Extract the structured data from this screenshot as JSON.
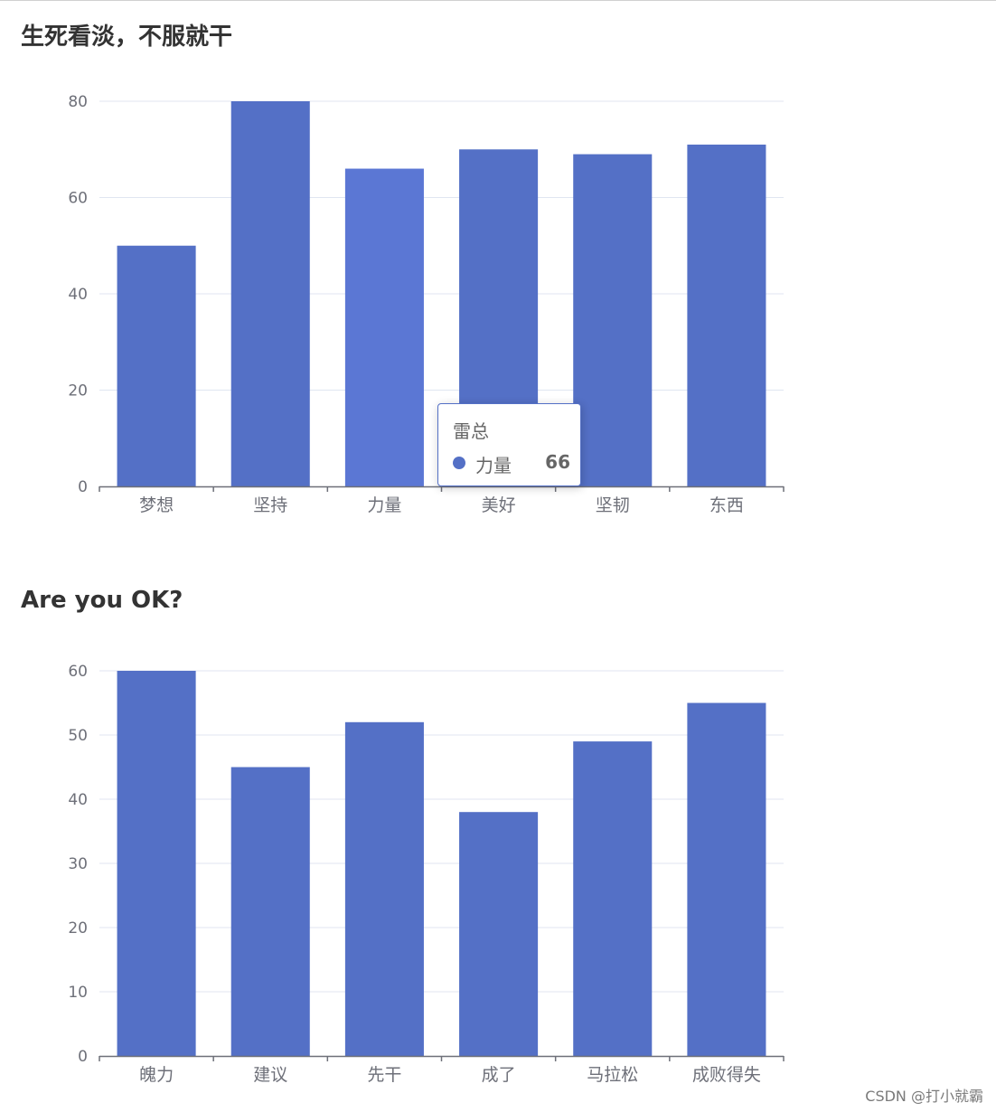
{
  "chart_data": [
    {
      "type": "bar",
      "title": "生死看淡，不服就干",
      "categories": [
        "梦想",
        "坚持",
        "力量",
        "美好",
        "坚韧",
        "东西"
      ],
      "series": [
        {
          "name": "力量",
          "values": [
            50,
            80,
            66,
            70,
            69,
            71
          ]
        }
      ],
      "ylim": [
        0,
        80
      ],
      "yticks": [
        0,
        20,
        40,
        60,
        80
      ],
      "grid": true,
      "colors": {
        "bar": "#5470c6",
        "bar_highlight": "#5b77d4"
      },
      "highlighted_index": 2,
      "tooltip": {
        "title": "雷总",
        "name": "力量",
        "value": "66"
      }
    },
    {
      "type": "bar",
      "title": "Are you OK?",
      "categories": [
        "魄力",
        "建议",
        "先干",
        "成了",
        "马拉松",
        "成败得失"
      ],
      "series": [
        {
          "values": [
            60,
            45,
            52,
            38,
            49,
            55
          ]
        }
      ],
      "ylim": [
        0,
        60
      ],
      "yticks": [
        0,
        10,
        20,
        30,
        40,
        50,
        60
      ],
      "grid": true,
      "colors": {
        "bar": "#5470c6"
      }
    }
  ],
  "watermark": "CSDN @打小就霸"
}
